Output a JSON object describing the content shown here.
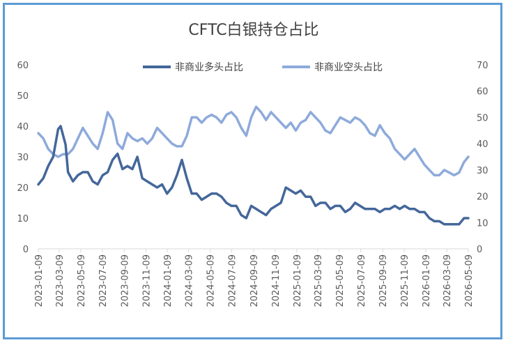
{
  "chart_data": {
    "type": "line",
    "title": "CFTC白银持仓占比",
    "legend_position": "top-center",
    "grid": false,
    "x_tick_labels": [
      "2023-01-09",
      "2023-03-09",
      "2023-05-09",
      "2023-07-09",
      "2023-09-09",
      "2023-11-09",
      "2024-01-09",
      "2024-03-09",
      "2024-05-09",
      "2024-07-09",
      "2024-09-09",
      "2024-11-09",
      "2025-01-09",
      "2025-03-09",
      "2025-05-09",
      "2025-07-09",
      "2025-09-09",
      "2025-11-09",
      "2026-01-09",
      "2026-03-09",
      "2026-05-09"
    ],
    "y_left": {
      "lim": [
        0,
        60
      ],
      "ticks": [
        0,
        10,
        20,
        30,
        40,
        50,
        60
      ]
    },
    "y_right": {
      "lim": [
        0,
        70
      ],
      "ticks": [
        0,
        10,
        20,
        30,
        40,
        50,
        60,
        70
      ]
    },
    "series": [
      {
        "name": "非商业多头占比",
        "axis": "left",
        "color": "#44679a",
        "points": [
          [
            "2023-01-09",
            21
          ],
          [
            "2023-01-23",
            23
          ],
          [
            "2023-02-06",
            27
          ],
          [
            "2023-02-20",
            30
          ],
          [
            "2023-03-06",
            39
          ],
          [
            "2023-03-13",
            40
          ],
          [
            "2023-03-27",
            34
          ],
          [
            "2023-04-03",
            25
          ],
          [
            "2023-04-17",
            22
          ],
          [
            "2023-05-01",
            24
          ],
          [
            "2023-05-15",
            25
          ],
          [
            "2023-05-29",
            25
          ],
          [
            "2023-06-12",
            22
          ],
          [
            "2023-06-26",
            21
          ],
          [
            "2023-07-10",
            24
          ],
          [
            "2023-07-24",
            25
          ],
          [
            "2023-08-07",
            29
          ],
          [
            "2023-08-21",
            31
          ],
          [
            "2023-09-04",
            26
          ],
          [
            "2023-09-18",
            27
          ],
          [
            "2023-10-02",
            26
          ],
          [
            "2023-10-16",
            30
          ],
          [
            "2023-10-30",
            23
          ],
          [
            "2023-11-13",
            22
          ],
          [
            "2023-11-27",
            21
          ],
          [
            "2023-12-11",
            20
          ],
          [
            "2023-12-25",
            21
          ],
          [
            "2024-01-08",
            18
          ],
          [
            "2024-01-22",
            20
          ],
          [
            "2024-02-05",
            24
          ],
          [
            "2024-02-19",
            29
          ],
          [
            "2024-03-04",
            23
          ],
          [
            "2024-03-18",
            18
          ],
          [
            "2024-04-01",
            18
          ],
          [
            "2024-04-15",
            16
          ],
          [
            "2024-04-29",
            17
          ],
          [
            "2024-05-13",
            18
          ],
          [
            "2024-05-27",
            18
          ],
          [
            "2024-06-10",
            17
          ],
          [
            "2024-06-24",
            15
          ],
          [
            "2024-07-08",
            14
          ],
          [
            "2024-07-22",
            14
          ],
          [
            "2024-08-05",
            11
          ],
          [
            "2024-08-19",
            10
          ],
          [
            "2024-09-02",
            14
          ],
          [
            "2024-09-16",
            13
          ],
          [
            "2024-09-30",
            12
          ],
          [
            "2024-10-14",
            11
          ],
          [
            "2024-10-28",
            13
          ],
          [
            "2024-11-11",
            14
          ],
          [
            "2024-11-25",
            15
          ],
          [
            "2024-12-09",
            20
          ],
          [
            "2024-12-23",
            19
          ],
          [
            "2025-01-06",
            18
          ],
          [
            "2025-01-20",
            19
          ],
          [
            "2025-02-03",
            17
          ],
          [
            "2025-02-17",
            17
          ],
          [
            "2025-03-03",
            14
          ],
          [
            "2025-03-17",
            15
          ],
          [
            "2025-03-31",
            15
          ],
          [
            "2025-04-14",
            13
          ],
          [
            "2025-04-28",
            14
          ],
          [
            "2025-05-12",
            14
          ],
          [
            "2025-05-26",
            12
          ],
          [
            "2025-06-09",
            13
          ],
          [
            "2025-06-23",
            15
          ],
          [
            "2025-07-07",
            14
          ],
          [
            "2025-07-21",
            13
          ],
          [
            "2025-08-04",
            13
          ],
          [
            "2025-08-18",
            13
          ],
          [
            "2025-09-01",
            12
          ],
          [
            "2025-09-15",
            13
          ],
          [
            "2025-09-29",
            13
          ],
          [
            "2025-10-13",
            14
          ],
          [
            "2025-10-27",
            13
          ],
          [
            "2025-11-10",
            14
          ],
          [
            "2025-11-24",
            13
          ],
          [
            "2025-12-08",
            13
          ],
          [
            "2025-12-22",
            12
          ],
          [
            "2026-01-05",
            12
          ],
          [
            "2026-01-19",
            10
          ],
          [
            "2026-02-02",
            9
          ],
          [
            "2026-02-16",
            9
          ],
          [
            "2026-03-02",
            8
          ],
          [
            "2026-03-16",
            8
          ],
          [
            "2026-03-30",
            8
          ],
          [
            "2026-04-13",
            8
          ],
          [
            "2026-04-27",
            10
          ],
          [
            "2026-05-09",
            10
          ]
        ]
      },
      {
        "name": "非商业空头占比",
        "axis": "right",
        "color": "#8eaadb",
        "points": [
          [
            "2023-01-09",
            44
          ],
          [
            "2023-01-23",
            42
          ],
          [
            "2023-02-06",
            38
          ],
          [
            "2023-02-20",
            36
          ],
          [
            "2023-03-06",
            35
          ],
          [
            "2023-03-20",
            36
          ],
          [
            "2023-04-03",
            36
          ],
          [
            "2023-04-17",
            38
          ],
          [
            "2023-05-01",
            42
          ],
          [
            "2023-05-15",
            46
          ],
          [
            "2023-05-29",
            43
          ],
          [
            "2023-06-12",
            40
          ],
          [
            "2023-06-26",
            38
          ],
          [
            "2023-07-10",
            44
          ],
          [
            "2023-07-24",
            52
          ],
          [
            "2023-08-07",
            49
          ],
          [
            "2023-08-21",
            40
          ],
          [
            "2023-09-04",
            38
          ],
          [
            "2023-09-18",
            44
          ],
          [
            "2023-10-02",
            42
          ],
          [
            "2023-10-16",
            41
          ],
          [
            "2023-10-30",
            42
          ],
          [
            "2023-11-13",
            40
          ],
          [
            "2023-11-27",
            42
          ],
          [
            "2023-12-11",
            46
          ],
          [
            "2023-12-25",
            44
          ],
          [
            "2024-01-08",
            42
          ],
          [
            "2024-01-22",
            40
          ],
          [
            "2024-02-05",
            39
          ],
          [
            "2024-02-19",
            39
          ],
          [
            "2024-03-04",
            43
          ],
          [
            "2024-03-18",
            50
          ],
          [
            "2024-04-01",
            50
          ],
          [
            "2024-04-15",
            48
          ],
          [
            "2024-04-29",
            50
          ],
          [
            "2024-05-13",
            51
          ],
          [
            "2024-05-27",
            50
          ],
          [
            "2024-06-10",
            48
          ],
          [
            "2024-06-24",
            51
          ],
          [
            "2024-07-08",
            52
          ],
          [
            "2024-07-22",
            50
          ],
          [
            "2024-08-05",
            46
          ],
          [
            "2024-08-19",
            43
          ],
          [
            "2024-09-02",
            50
          ],
          [
            "2024-09-16",
            54
          ],
          [
            "2024-09-30",
            52
          ],
          [
            "2024-10-14",
            49
          ],
          [
            "2024-10-28",
            52
          ],
          [
            "2024-11-11",
            50
          ],
          [
            "2024-11-25",
            48
          ],
          [
            "2024-12-09",
            46
          ],
          [
            "2024-12-23",
            48
          ],
          [
            "2025-01-06",
            45
          ],
          [
            "2025-01-20",
            48
          ],
          [
            "2025-02-03",
            49
          ],
          [
            "2025-02-17",
            52
          ],
          [
            "2025-03-03",
            50
          ],
          [
            "2025-03-17",
            48
          ],
          [
            "2025-03-31",
            45
          ],
          [
            "2025-04-14",
            44
          ],
          [
            "2025-04-28",
            47
          ],
          [
            "2025-05-12",
            50
          ],
          [
            "2025-05-26",
            49
          ],
          [
            "2025-06-09",
            48
          ],
          [
            "2025-06-23",
            50
          ],
          [
            "2025-07-07",
            49
          ],
          [
            "2025-07-21",
            47
          ],
          [
            "2025-08-04",
            44
          ],
          [
            "2025-08-18",
            43
          ],
          [
            "2025-09-01",
            47
          ],
          [
            "2025-09-15",
            44
          ],
          [
            "2025-09-29",
            42
          ],
          [
            "2025-10-13",
            38
          ],
          [
            "2025-10-27",
            36
          ],
          [
            "2025-11-10",
            34
          ],
          [
            "2025-11-24",
            36
          ],
          [
            "2025-12-08",
            38
          ],
          [
            "2025-12-22",
            35
          ],
          [
            "2026-01-05",
            32
          ],
          [
            "2026-01-19",
            30
          ],
          [
            "2026-02-02",
            28
          ],
          [
            "2026-02-16",
            28
          ],
          [
            "2026-03-02",
            30
          ],
          [
            "2026-03-16",
            29
          ],
          [
            "2026-03-30",
            28
          ],
          [
            "2026-04-13",
            29
          ],
          [
            "2026-04-27",
            33
          ],
          [
            "2026-05-09",
            35
          ]
        ]
      }
    ]
  }
}
